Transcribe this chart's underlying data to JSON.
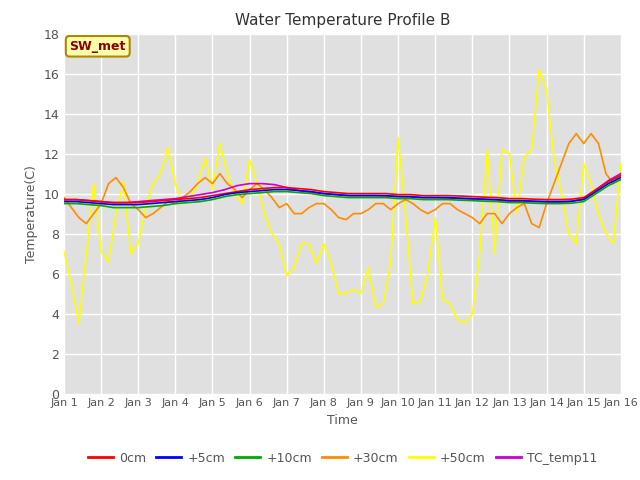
{
  "title": "Water Temperature Profile B",
  "xlabel": "Time",
  "ylabel": "Temperature(C)",
  "ylim": [
    0,
    18
  ],
  "xlim": [
    0,
    15
  ],
  "xtick_labels": [
    "Jan 1",
    "Jan 2",
    "Jan 3",
    "Jan 4",
    "Jan 5",
    "Jan 6",
    "Jan 7",
    "Jan 8",
    "Jan 9",
    "Jan 10",
    "Jan 11",
    "Jan 12",
    "Jan 13",
    "Jan 14",
    "Jan 15",
    "Jan 16"
  ],
  "ytick_values": [
    0,
    2,
    4,
    6,
    8,
    10,
    12,
    14,
    16,
    18
  ],
  "annotation_text": "SW_met",
  "annotation_color": "#8B0000",
  "annotation_bg": "#FFFFAA",
  "series": {
    "0cm": {
      "color": "#FF0000",
      "lw": 1.2
    },
    "+5cm": {
      "color": "#0000FF",
      "lw": 1.2
    },
    "+10cm": {
      "color": "#00AA00",
      "lw": 1.2
    },
    "+30cm": {
      "color": "#FF8C00",
      "lw": 1.2
    },
    "+50cm": {
      "color": "#FFFF00",
      "lw": 1.2
    },
    "TC_temp11": {
      "color": "#CC00CC",
      "lw": 1.2
    }
  },
  "background_color": "#E0E0E0",
  "grid_color": "#FFFFFF",
  "x_0cm": [
    0,
    0.333,
    0.667,
    1,
    1.333,
    1.667,
    2,
    2.333,
    2.667,
    3,
    3.333,
    3.667,
    4,
    4.333,
    4.667,
    5,
    5.333,
    5.667,
    6,
    6.333,
    6.667,
    7,
    7.333,
    7.667,
    8,
    8.333,
    8.667,
    9,
    9.333,
    9.667,
    10,
    10.333,
    10.667,
    11,
    11.333,
    11.667,
    12,
    12.333,
    12.667,
    13,
    13.333,
    13.667,
    14,
    14.333,
    14.667,
    15
  ],
  "y_0cm": [
    9.7,
    9.7,
    9.65,
    9.6,
    9.55,
    9.55,
    9.55,
    9.6,
    9.65,
    9.7,
    9.75,
    9.8,
    9.9,
    10.0,
    10.1,
    10.2,
    10.25,
    10.3,
    10.3,
    10.25,
    10.2,
    10.1,
    10.05,
    10.0,
    10.0,
    10.0,
    10.0,
    9.95,
    9.95,
    9.9,
    9.9,
    9.9,
    9.88,
    9.85,
    9.82,
    9.8,
    9.75,
    9.75,
    9.72,
    9.7,
    9.7,
    9.72,
    9.8,
    10.2,
    10.6,
    10.9
  ],
  "x_5cm": [
    0,
    0.333,
    0.667,
    1,
    1.333,
    1.667,
    2,
    2.333,
    2.667,
    3,
    3.333,
    3.667,
    4,
    4.333,
    4.667,
    5,
    5.333,
    5.667,
    6,
    6.333,
    6.667,
    7,
    7.333,
    7.667,
    8,
    8.333,
    8.667,
    9,
    9.333,
    9.667,
    10,
    10.333,
    10.667,
    11,
    11.333,
    11.667,
    12,
    12.333,
    12.667,
    13,
    13.333,
    13.667,
    14,
    14.333,
    14.667,
    15
  ],
  "y_5cm": [
    9.6,
    9.6,
    9.55,
    9.5,
    9.45,
    9.45,
    9.45,
    9.5,
    9.55,
    9.6,
    9.65,
    9.7,
    9.8,
    9.95,
    10.05,
    10.1,
    10.15,
    10.2,
    10.2,
    10.15,
    10.1,
    10.0,
    9.95,
    9.9,
    9.9,
    9.9,
    9.9,
    9.85,
    9.85,
    9.8,
    9.8,
    9.8,
    9.77,
    9.75,
    9.72,
    9.7,
    9.65,
    9.65,
    9.62,
    9.6,
    9.6,
    9.62,
    9.7,
    10.1,
    10.5,
    10.8
  ],
  "x_10cm": [
    0,
    0.333,
    0.667,
    1,
    1.333,
    1.667,
    2,
    2.333,
    2.667,
    3,
    3.333,
    3.667,
    4,
    4.333,
    4.667,
    5,
    5.333,
    5.667,
    6,
    6.333,
    6.667,
    7,
    7.333,
    7.667,
    8,
    8.333,
    8.667,
    9,
    9.333,
    9.667,
    10,
    10.333,
    10.667,
    11,
    11.333,
    11.667,
    12,
    12.333,
    12.667,
    13,
    13.333,
    13.667,
    14,
    14.333,
    14.667,
    15
  ],
  "y_10cm": [
    9.5,
    9.5,
    9.45,
    9.4,
    9.3,
    9.3,
    9.3,
    9.35,
    9.4,
    9.5,
    9.55,
    9.6,
    9.7,
    9.85,
    9.95,
    10.0,
    10.05,
    10.1,
    10.1,
    10.05,
    10.0,
    9.9,
    9.85,
    9.8,
    9.8,
    9.8,
    9.8,
    9.75,
    9.75,
    9.7,
    9.7,
    9.7,
    9.67,
    9.65,
    9.62,
    9.6,
    9.55,
    9.55,
    9.52,
    9.5,
    9.5,
    9.52,
    9.6,
    10.0,
    10.4,
    10.7
  ],
  "x_30cm": [
    0,
    0.2,
    0.4,
    0.6,
    0.8,
    1,
    1.2,
    1.4,
    1.6,
    1.8,
    2,
    2.2,
    2.4,
    2.6,
    2.8,
    3,
    3.2,
    3.4,
    3.6,
    3.8,
    4,
    4.2,
    4.4,
    4.6,
    4.8,
    5,
    5.2,
    5.4,
    5.6,
    5.8,
    6,
    6.2,
    6.4,
    6.6,
    6.8,
    7,
    7.2,
    7.4,
    7.6,
    7.8,
    8,
    8.2,
    8.4,
    8.6,
    8.8,
    9,
    9.2,
    9.4,
    9.6,
    9.8,
    10,
    10.2,
    10.4,
    10.6,
    10.8,
    11,
    11.2,
    11.4,
    11.6,
    11.8,
    12,
    12.2,
    12.4,
    12.6,
    12.8,
    13,
    13.2,
    13.4,
    13.6,
    13.8,
    14,
    14.2,
    14.4,
    14.6,
    14.8,
    15
  ],
  "y_30cm": [
    9.8,
    9.3,
    8.8,
    8.5,
    9.0,
    9.5,
    10.5,
    10.8,
    10.3,
    9.5,
    9.2,
    8.8,
    9.0,
    9.3,
    9.6,
    9.5,
    9.8,
    10.1,
    10.5,
    10.8,
    10.5,
    11.0,
    10.5,
    10.2,
    9.8,
    10.2,
    10.5,
    10.2,
    9.8,
    9.3,
    9.5,
    9.0,
    9.0,
    9.3,
    9.5,
    9.5,
    9.2,
    8.8,
    8.7,
    9.0,
    9.0,
    9.2,
    9.5,
    9.5,
    9.2,
    9.5,
    9.7,
    9.5,
    9.2,
    9.0,
    9.2,
    9.5,
    9.5,
    9.2,
    9.0,
    8.8,
    8.5,
    9.0,
    9.0,
    8.5,
    9.0,
    9.3,
    9.5,
    8.5,
    8.3,
    9.5,
    10.5,
    11.5,
    12.5,
    13.0,
    12.5,
    13.0,
    12.5,
    11.0,
    10.5,
    11.0
  ],
  "x_50cm": [
    0,
    0.2,
    0.4,
    0.6,
    0.8,
    1,
    1.2,
    1.4,
    1.6,
    1.8,
    2,
    2.2,
    2.4,
    2.6,
    2.8,
    3,
    3.2,
    3.4,
    3.6,
    3.8,
    4,
    4.2,
    4.4,
    4.6,
    4.8,
    5,
    5.2,
    5.4,
    5.6,
    5.8,
    6,
    6.2,
    6.4,
    6.6,
    6.8,
    7,
    7.2,
    7.4,
    7.6,
    7.8,
    8,
    8.2,
    8.4,
    8.6,
    8.8,
    9,
    9.2,
    9.4,
    9.6,
    9.8,
    10,
    10.2,
    10.4,
    10.6,
    10.8,
    11,
    11.2,
    11.4,
    11.6,
    11.8,
    12,
    12.2,
    12.4,
    12.6,
    12.8,
    13,
    13.2,
    13.4,
    13.6,
    13.8,
    14,
    14.2,
    14.4,
    14.6,
    14.8,
    15
  ],
  "y_50cm": [
    7.1,
    5.5,
    3.5,
    7.0,
    10.5,
    7.1,
    6.6,
    9.0,
    10.6,
    7.0,
    7.5,
    9.3,
    10.5,
    11.0,
    12.3,
    10.5,
    9.5,
    9.8,
    10.5,
    11.8,
    10.2,
    12.5,
    11.0,
    10.0,
    9.5,
    11.7,
    10.5,
    9.0,
    8.0,
    7.5,
    5.9,
    6.3,
    7.5,
    7.5,
    6.5,
    7.5,
    6.5,
    5.0,
    5.0,
    5.2,
    5.0,
    6.3,
    4.3,
    4.5,
    6.5,
    12.8,
    9.0,
    4.5,
    4.6,
    6.0,
    8.8,
    4.7,
    4.5,
    3.7,
    3.5,
    4.0,
    7.0,
    12.2,
    7.0,
    12.2,
    12.0,
    9.0,
    11.8,
    12.2,
    16.2,
    15.2,
    11.8,
    10.0,
    8.0,
    7.5,
    11.5,
    10.5,
    9.0,
    8.0,
    7.5,
    11.5
  ],
  "x_tc": [
    0,
    0.333,
    0.667,
    1,
    1.333,
    1.667,
    2,
    2.333,
    2.667,
    3,
    3.333,
    3.667,
    4,
    4.333,
    4.667,
    5,
    5.333,
    5.667,
    6,
    6.333,
    6.667,
    7,
    7.333,
    7.667,
    8,
    8.333,
    8.667,
    9,
    9.333,
    9.667,
    10,
    10.333,
    10.667,
    11,
    11.333,
    11.667,
    12,
    12.333,
    12.667,
    13,
    13.333,
    13.667,
    14,
    14.333,
    14.667,
    15
  ],
  "y_tc": [
    9.7,
    9.7,
    9.65,
    9.6,
    9.55,
    9.55,
    9.6,
    9.65,
    9.7,
    9.75,
    9.85,
    9.95,
    10.05,
    10.2,
    10.4,
    10.5,
    10.5,
    10.45,
    10.3,
    10.15,
    10.05,
    10.0,
    9.95,
    9.9,
    9.9,
    9.9,
    9.88,
    9.85,
    9.83,
    9.8,
    9.8,
    9.78,
    9.75,
    9.72,
    9.7,
    9.68,
    9.6,
    9.62,
    9.6,
    9.58,
    9.55,
    9.6,
    9.75,
    10.2,
    10.65,
    11.0
  ]
}
